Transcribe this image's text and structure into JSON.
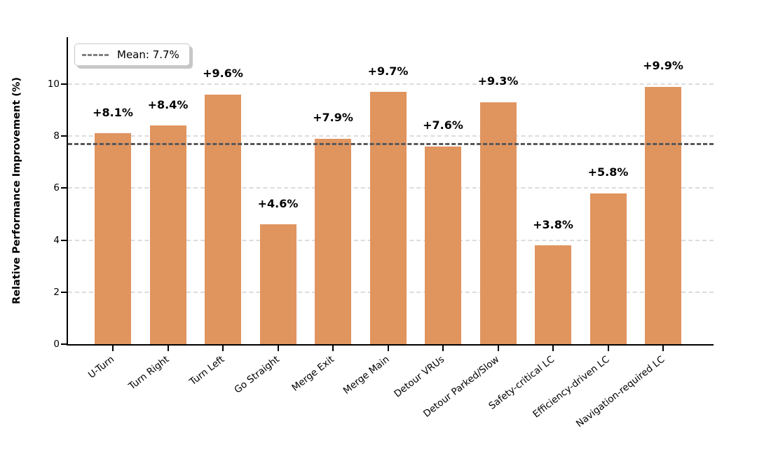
{
  "chart_data": {
    "type": "bar",
    "categories": [
      "U-Turn",
      "Turn Right",
      "Turn Left",
      "Go Straight",
      "Merge Exit",
      "Merge Main",
      "Detour VRUs",
      "Detour Parked/Slow",
      "Safety-critical LC",
      "Efficiency-driven LC",
      "Navigation-required LC"
    ],
    "values": [
      8.1,
      8.4,
      9.6,
      4.6,
      7.9,
      9.7,
      7.6,
      9.3,
      3.8,
      5.8,
      9.9
    ],
    "bar_labels": [
      "+8.1%",
      "+8.4%",
      "+9.6%",
      "+4.6%",
      "+7.9%",
      "+9.7%",
      "+7.6%",
      "+9.3%",
      "+3.8%",
      "+5.8%",
      "+9.9%"
    ],
    "title": "",
    "xlabel": "",
    "ylabel": "Relative Performance Improvement (%)",
    "ylim": [
      0,
      11.8
    ],
    "yticks": [
      0,
      2,
      4,
      6,
      8,
      10
    ],
    "mean_value": 7.7,
    "legend": {
      "label": "Mean: 7.7%",
      "position": "upper-left"
    },
    "grid": "horizontal-dashed",
    "colors": {
      "bar": "#e0945e",
      "mean_line": "#58585a",
      "grid_line": "#dcdcdc",
      "axis": "#000000",
      "text": "#000000"
    }
  }
}
